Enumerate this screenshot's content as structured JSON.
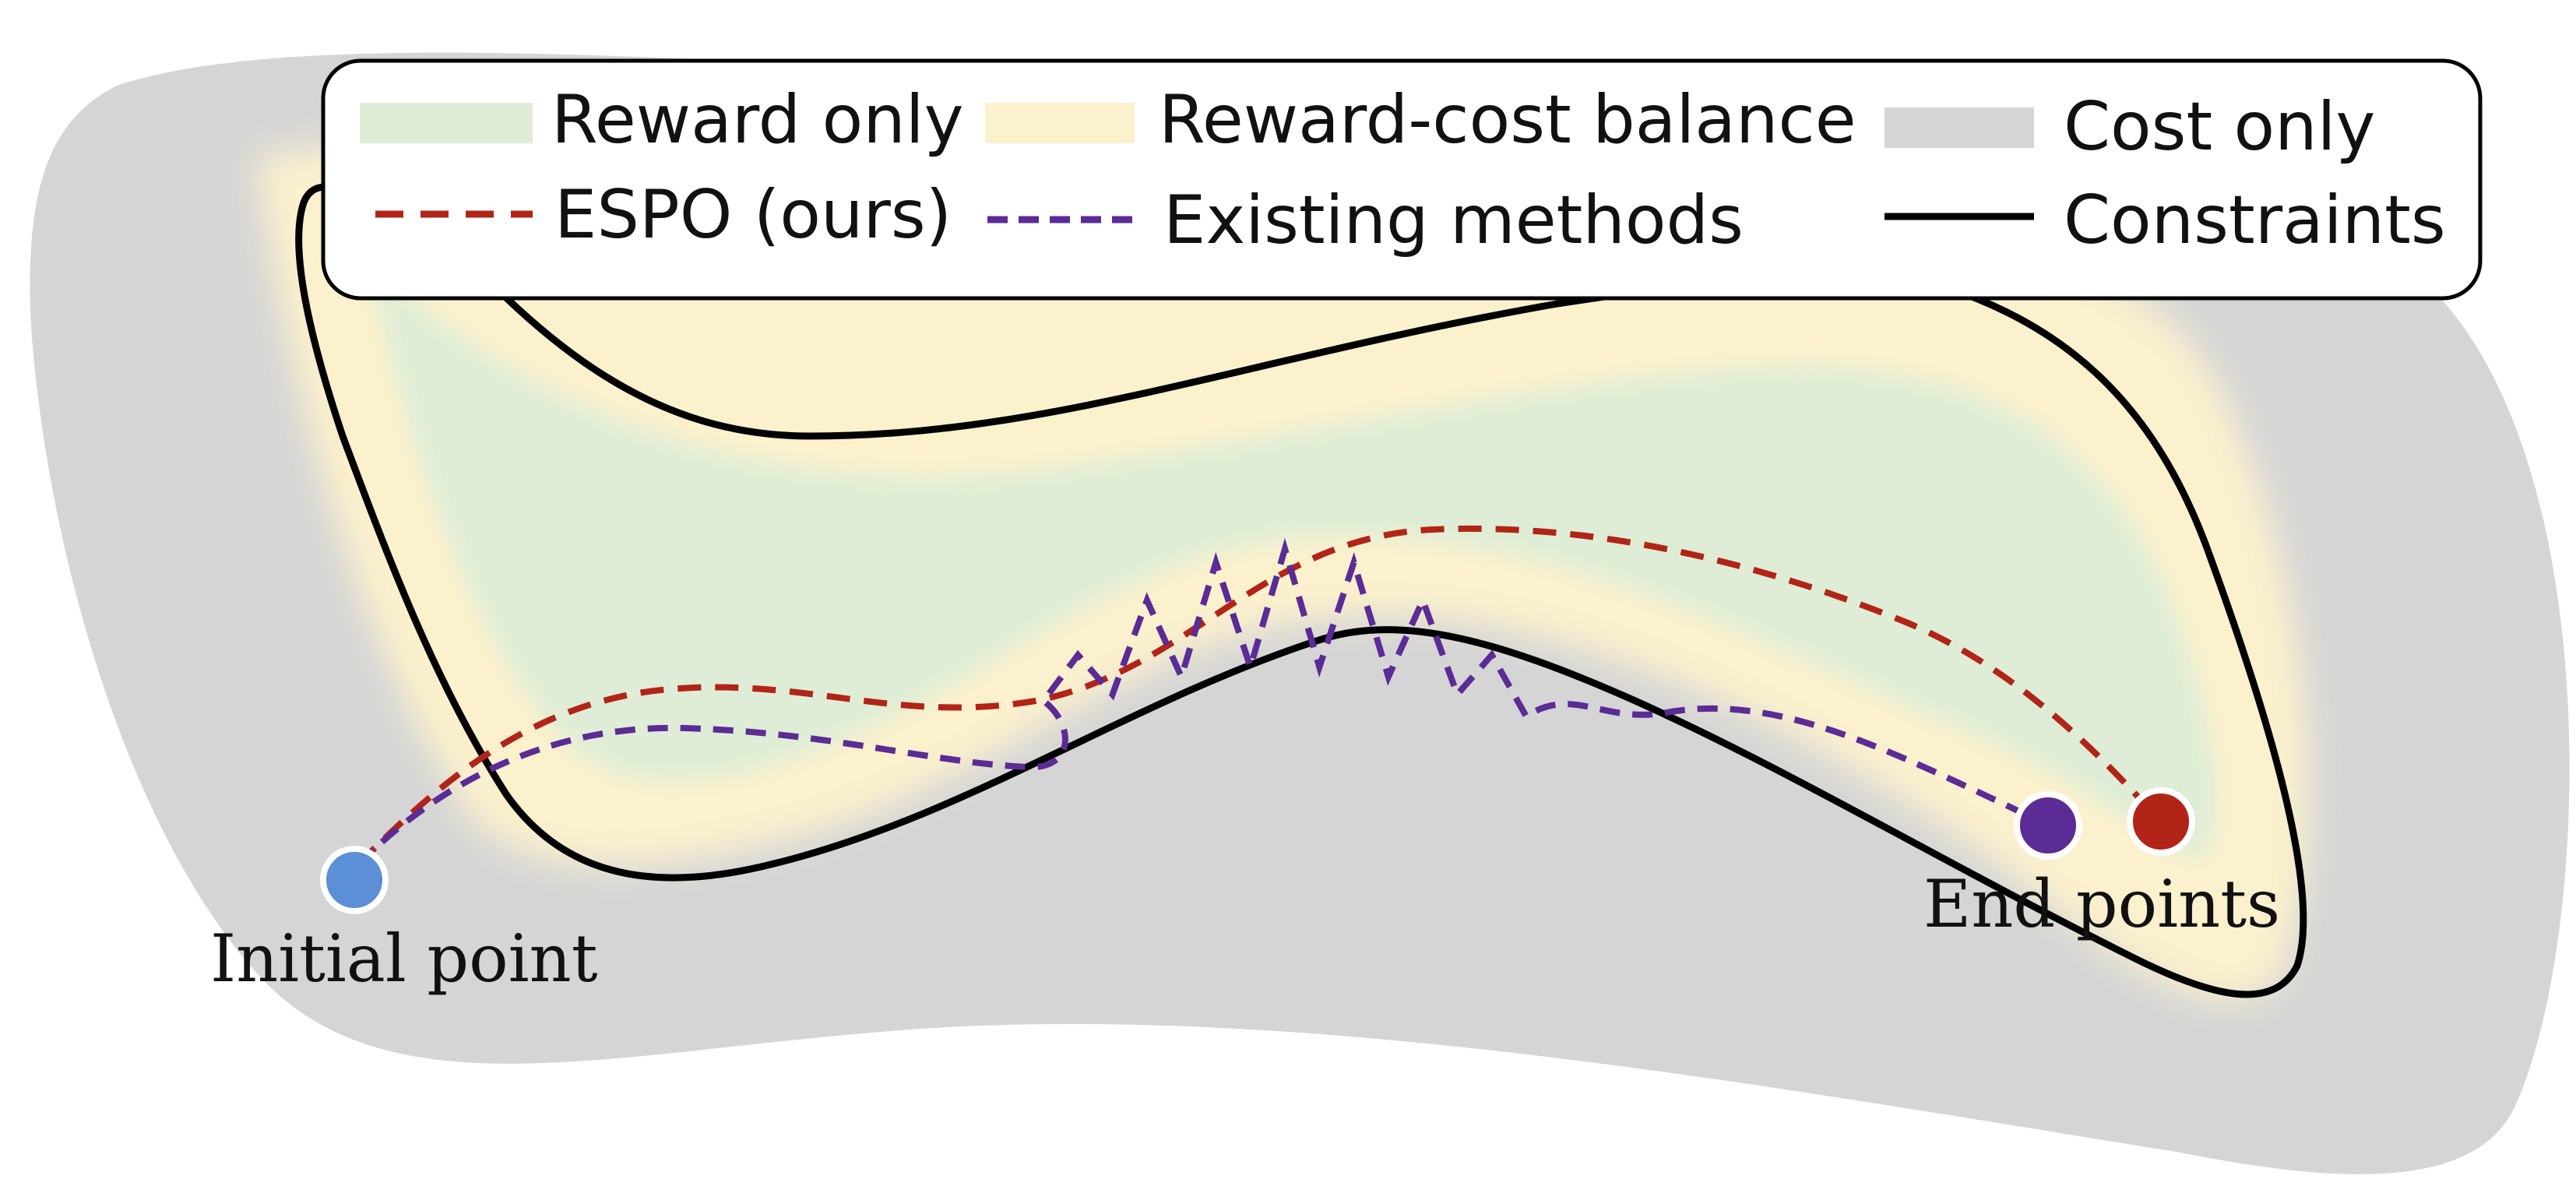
{
  "legend": {
    "reward_only": "Reward only",
    "reward_cost_balance": "Reward-cost balance",
    "cost_only": "Cost only",
    "espo": "ESPO (ours)",
    "existing": "Existing methods",
    "constraints": "Constraints"
  },
  "labels": {
    "initial_point": "Initial point",
    "end_points": "End points"
  },
  "colors": {
    "reward_only": "#dfedd6",
    "reward_cost_balance": "#fcf1cd",
    "cost_only": "#d5d5d5",
    "espo": "#b22418",
    "existing": "#5b2b96",
    "constraints": "#000000",
    "initial_point": "#5b8fd6",
    "espo_end": "#b22418",
    "existing_end": "#5b2b96"
  }
}
